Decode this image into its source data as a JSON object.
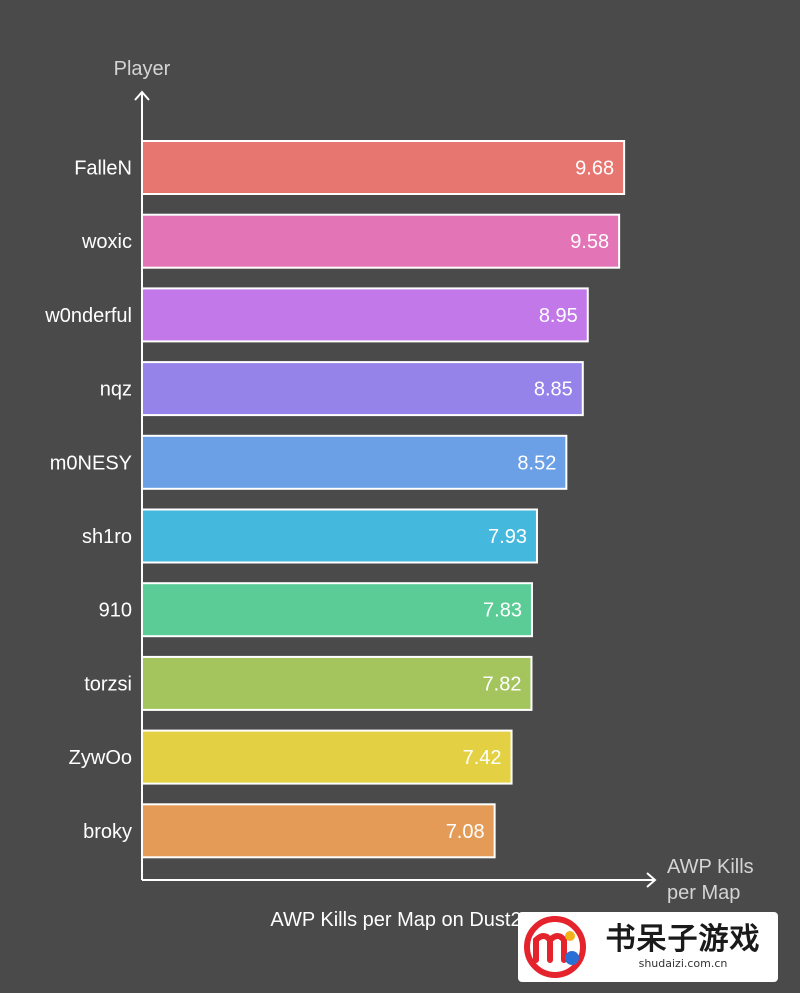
{
  "chart_data": {
    "type": "bar",
    "orientation": "horizontal",
    "title": "AWP Kills per Map on Dust2",
    "ylabel": "Player",
    "xlabel": "AWP Kills per Map",
    "categories": [
      "FalleN",
      "woxic",
      "w0nderful",
      "nqz",
      "m0NESY",
      "sh1ro",
      "910",
      "torzsi",
      "ZywOo",
      "broky"
    ],
    "values": [
      9.68,
      9.58,
      8.95,
      8.85,
      8.52,
      7.93,
      7.83,
      7.82,
      7.42,
      7.08
    ],
    "value_labels": [
      "9.68",
      "9.58",
      "8.95",
      "8.85",
      "8.52",
      "7.93",
      "7.83",
      "7.82",
      "7.42",
      "7.08"
    ],
    "colors": [
      "#e87670",
      "#e375b7",
      "#c278e8",
      "#9583ea",
      "#6b9fe6",
      "#45b8dd",
      "#5ccc96",
      "#a4c55e",
      "#e3d143",
      "#e39b57"
    ],
    "xlim": [
      0,
      10.3
    ],
    "grid": false,
    "legend": "none"
  },
  "watermark": {
    "brand": "书呆子游戏",
    "url": "shudaizi.com.cn"
  }
}
